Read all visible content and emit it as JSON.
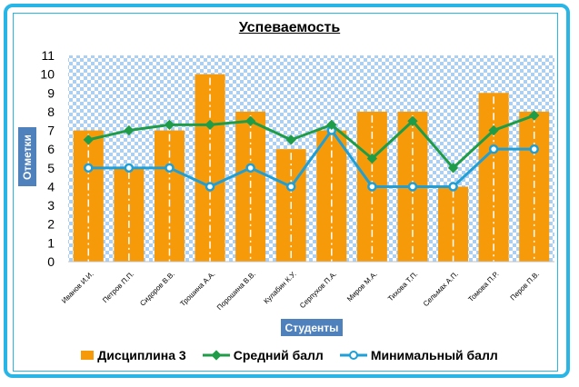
{
  "chart_data": {
    "type": "bar",
    "title": "Успеваемость",
    "xlabel": "Студенты",
    "ylabel": "Отметки",
    "ylim": [
      0,
      11
    ],
    "yticks": [
      0,
      1,
      2,
      3,
      4,
      5,
      6,
      7,
      8,
      9,
      10,
      11
    ],
    "categories": [
      "Иванов И.И.",
      "Петров П.П.",
      "Сидоров В.В.",
      "Трошина А.А.",
      "Порошина В.В.",
      "Кулабин К.У.",
      "Серпухов П.А.",
      "Миров М.А.",
      "Тихова Т.П.",
      "Сельмах А.П.",
      "Томова П.Р.",
      "Перов П.В."
    ],
    "series": [
      {
        "name": "Дисциплина 3",
        "kind": "bar",
        "color": "#f79a0a",
        "values": [
          7,
          5,
          7,
          10,
          8,
          6,
          7,
          8,
          8,
          4,
          9,
          8
        ]
      },
      {
        "name": "Средний балл",
        "kind": "line",
        "color": "#1e9c48",
        "values": [
          6.5,
          7.0,
          7.3,
          7.3,
          7.5,
          6.5,
          7.3,
          5.5,
          7.5,
          5.0,
          7.0,
          7.8
        ]
      },
      {
        "name": "Минимальный балл",
        "kind": "line",
        "color": "#1f9fd6",
        "values": [
          5,
          5,
          5,
          4,
          5,
          4,
          7,
          4,
          4,
          4,
          6,
          6
        ]
      }
    ],
    "grid": true,
    "legend_position": "bottom"
  }
}
